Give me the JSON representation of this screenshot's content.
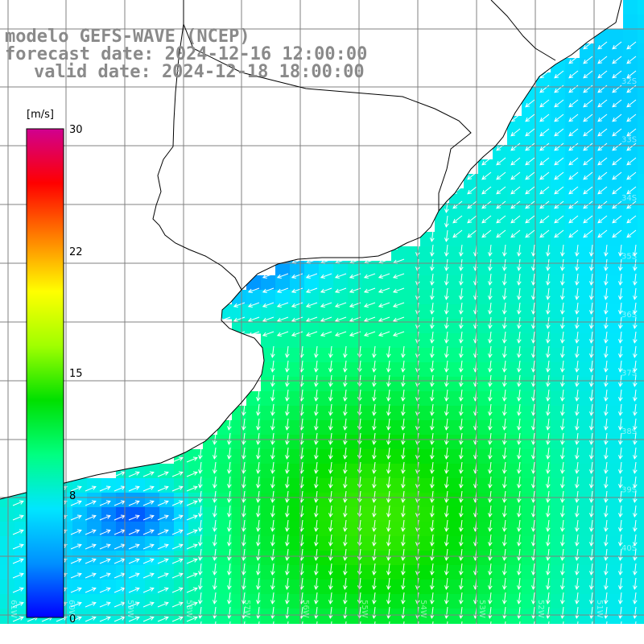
{
  "title": {
    "line1": "modelo GEFS-WAVE (NCEP)",
    "line2": "forecast date: 2024-12-16 12:00:00",
    "line3": "valid date: 2024-12-18 18:00:00"
  },
  "colorbar": {
    "unit_label": "[m/s]",
    "min": 0,
    "max": 30,
    "ticks": [
      "30",
      "22",
      "15",
      "8",
      "0"
    ],
    "tick_values": [
      30,
      22,
      15,
      8,
      0
    ],
    "colors": [
      "#0000ff",
      "#0090ff",
      "#00e6ff",
      "#00ff80",
      "#00e000",
      "#a0ff00",
      "#ffff00",
      "#ff8000",
      "#ff0000",
      "#d00090"
    ]
  },
  "map": {
    "land_color": "#ffffff",
    "grid_color": "#808080",
    "coast_color": "#000000",
    "lat_labels": [
      "32S",
      "33S",
      "34S",
      "35S",
      "36S",
      "37S",
      "38S",
      "39S",
      "40S"
    ],
    "lon_labels": [
      "61W",
      "60W",
      "59W",
      "58W",
      "57W",
      "56W",
      "55W",
      "54W",
      "53W",
      "52W",
      "51W"
    ]
  }
}
